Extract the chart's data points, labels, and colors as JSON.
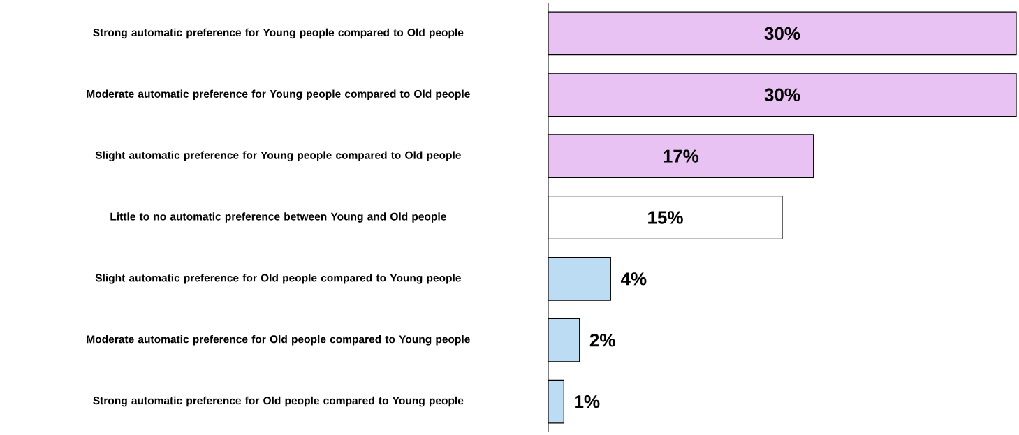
{
  "chart_data": {
    "type": "bar",
    "orientation": "horizontal",
    "categories": [
      "Strong automatic preference for Young people compared to Old people",
      "Moderate automatic preference for Young people compared to Old people",
      "Slight automatic preference for Young people compared to Old people",
      "Little to no automatic preference between Young and Old people",
      "Slight automatic preference for Old people compared to Young people",
      "Moderate automatic preference for Old people compared to Young people",
      "Strong automatic preference for Old people compared to Young people"
    ],
    "values": [
      30,
      30,
      17,
      15,
      4,
      2,
      1
    ],
    "colors": [
      "#e8c2f2",
      "#e8c2f2",
      "#e8c2f2",
      "#ffffff",
      "#bcdcf4",
      "#bcdcf4",
      "#bcdcf4"
    ],
    "value_labels": [
      "30%",
      "30%",
      "17%",
      "15%",
      "4%",
      "2%",
      "1%"
    ]
  }
}
